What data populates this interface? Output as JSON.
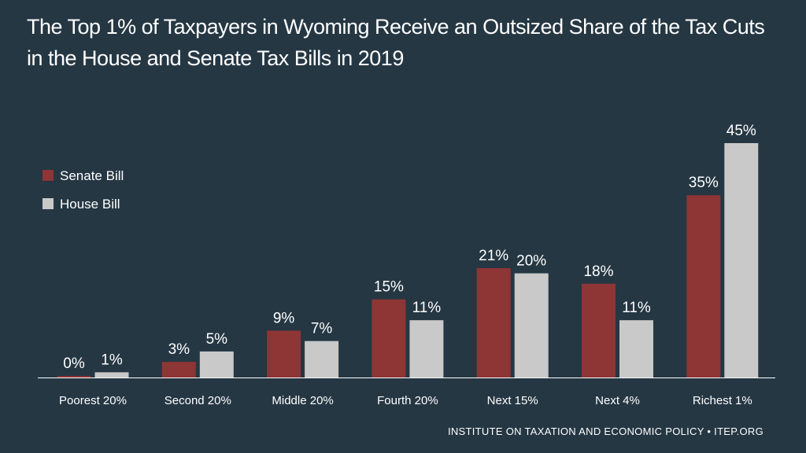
{
  "title": {
    "line1": "The Top 1% of Taxpayers in Wyoming Receive an Outsized Share of the Tax Cuts",
    "line2": "in the House and Senate Tax Bills in 2019"
  },
  "source": "INSTITUTE ON TAXATION AND ECONOMIC POLICY • ITEP.ORG",
  "colors": {
    "background": "#253743",
    "senate": "#8e3535",
    "house": "#c9c9c9",
    "text": "#ffffff"
  },
  "chart_data": {
    "type": "bar",
    "categories": [
      "Poorest 20%",
      "Second 20%",
      "Middle 20%",
      "Fourth 20%",
      "Next 15%",
      "Next 4%",
      "Richest 1%"
    ],
    "series": [
      {
        "name": "Senate Bill",
        "values": [
          0,
          3,
          9,
          15,
          21,
          18,
          35
        ],
        "labels": [
          "0%",
          "3%",
          "9%",
          "15%",
          "21%",
          "18%",
          "35%"
        ]
      },
      {
        "name": "House Bill",
        "values": [
          1,
          5,
          7,
          11,
          20,
          11,
          45
        ],
        "labels": [
          "1%",
          "5%",
          "7%",
          "11%",
          "20%",
          "11%",
          "45%"
        ]
      }
    ],
    "ylim": [
      0,
      45
    ],
    "grid": false,
    "legend_position": "top-left"
  }
}
